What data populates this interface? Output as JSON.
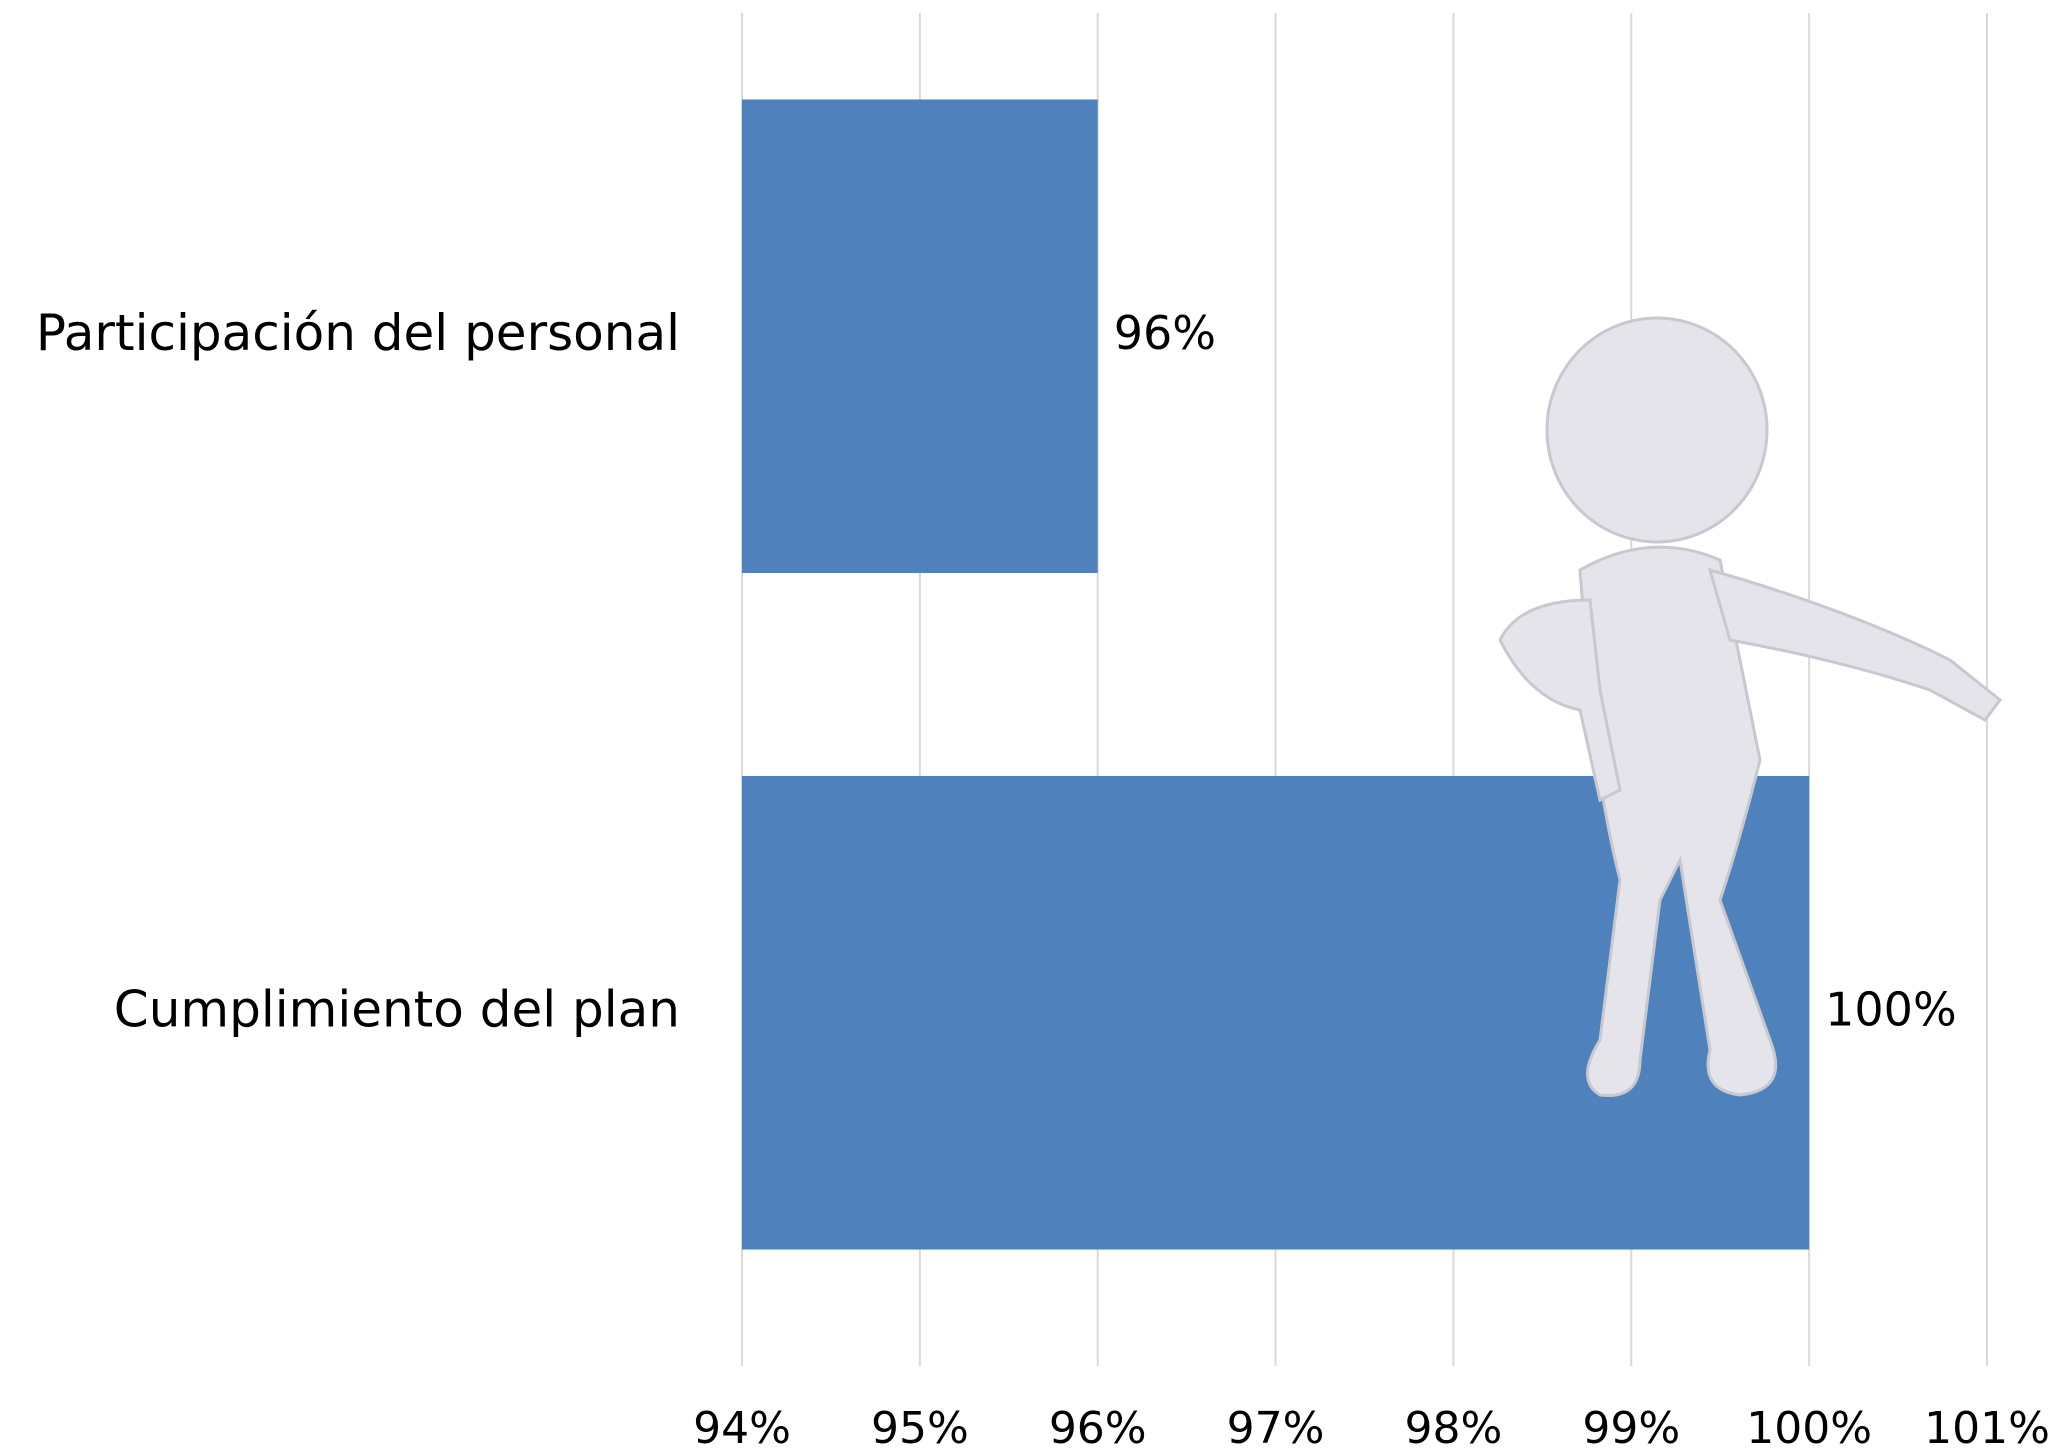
{
  "chart_data": {
    "type": "bar",
    "orientation": "horizontal",
    "categories": [
      "Participación del personal",
      "Cumplimiento del plan"
    ],
    "values": [
      96,
      100
    ],
    "value_labels": [
      "96%",
      "100%"
    ],
    "color": "#4f81bd",
    "xlim": [
      94,
      101
    ],
    "xticks": [
      {
        "value": 94,
        "label": "94%"
      },
      {
        "value": 95,
        "label": "95%"
      },
      {
        "value": 96,
        "label": "96%"
      },
      {
        "value": 97,
        "label": "97%"
      },
      {
        "value": 98,
        "label": "98%"
      },
      {
        "value": 99,
        "label": "99%"
      },
      {
        "value": 100,
        "label": "100%"
      },
      {
        "value": 101,
        "label": "101%"
      }
    ],
    "grid": true
  }
}
